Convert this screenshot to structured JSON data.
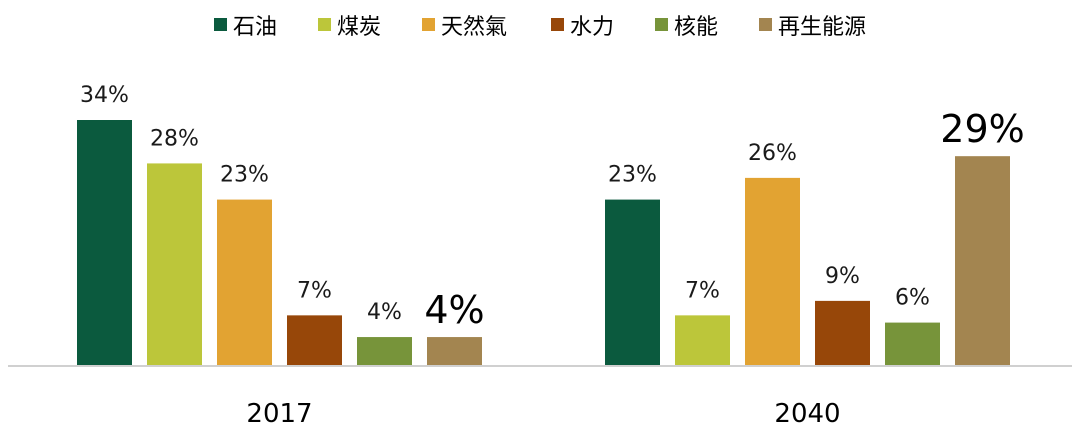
{
  "chart_data": {
    "type": "bar",
    "title": "",
    "xlabel": "",
    "ylabel": "",
    "unit": "%",
    "ylim": [
      0,
      34
    ],
    "grid": false,
    "legend_placement": "top-center",
    "categories": [
      "2017",
      "2040"
    ],
    "series": [
      {
        "name": "石油",
        "color": "#0b5a3e",
        "values": [
          34,
          23
        ]
      },
      {
        "name": "煤炭",
        "color": "#bcc63a",
        "values": [
          28,
          7
        ]
      },
      {
        "name": "天然氣",
        "color": "#e2a332",
        "values": [
          23,
          26
        ]
      },
      {
        "name": "水力",
        "color": "#974709",
        "values": [
          7,
          9
        ]
      },
      {
        "name": "核能",
        "color": "#77943a",
        "values": [
          4,
          6
        ]
      },
      {
        "name": "再生能源",
        "color": "#a38550",
        "values": [
          4,
          29
        ]
      }
    ],
    "data_labels": [
      [
        "34%",
        "23%"
      ],
      [
        "28%",
        "7%"
      ],
      [
        "23%",
        "26%"
      ],
      [
        "7%",
        "9%"
      ],
      [
        "4%",
        "6%"
      ],
      [
        "4%",
        "29%"
      ]
    ],
    "emphasized_series": "再生能源"
  }
}
